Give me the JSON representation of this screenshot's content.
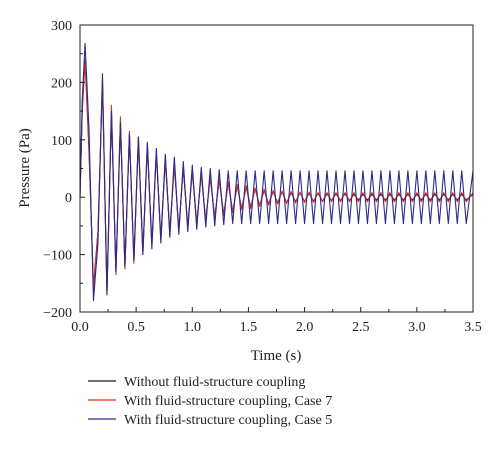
{
  "chart_data": {
    "type": "line",
    "title": "",
    "xlabel": "Time (s)",
    "ylabel": "Pressure (Pa)",
    "xlim": [
      0.0,
      3.5
    ],
    "ylim": [
      -200,
      300
    ],
    "xticks": [
      0.0,
      0.5,
      1.0,
      1.5,
      2.0,
      2.5,
      3.0,
      3.5
    ],
    "xtick_labels": [
      "0.0",
      "0.5",
      "1.0",
      "1.5",
      "2.0",
      "2.5",
      "3.0",
      "3.5"
    ],
    "yticks": [
      -200,
      -100,
      0,
      100,
      200,
      300
    ],
    "ytick_labels": [
      "−200",
      "−100",
      "0",
      "100",
      "200",
      "300"
    ],
    "grid": false,
    "legend_position": "bottom",
    "series": [
      {
        "name": "Without fluid-structure coupling",
        "color": "#1a1a1a",
        "x": [
          0,
          0.02,
          0.045,
          0.08,
          0.12,
          0.16,
          0.2,
          0.24,
          0.28,
          0.32,
          0.36,
          0.4,
          0.44,
          0.48,
          0.52,
          0.56,
          0.6,
          0.64,
          0.68,
          0.72,
          0.76,
          0.8,
          0.84,
          0.88,
          0.92,
          0.96,
          1.0,
          1.04,
          1.08,
          1.12,
          1.16,
          1.2,
          1.24,
          1.28,
          1.32,
          1.36,
          1.4,
          1.44,
          1.48,
          1.52,
          1.56,
          1.6,
          1.64,
          1.68,
          1.72,
          1.76,
          1.8,
          1.84,
          1.88,
          1.92,
          1.96,
          2.0,
          2.04,
          2.08,
          2.12,
          2.16,
          2.2,
          2.24,
          2.28,
          2.32,
          2.36,
          2.4,
          2.44,
          2.48,
          2.52,
          2.56,
          2.6,
          2.64,
          2.68,
          2.72,
          2.76,
          2.8,
          2.84,
          2.88,
          2.92,
          2.96,
          3.0,
          3.04,
          3.08,
          3.12,
          3.16,
          3.2,
          3.24,
          3.28,
          3.32,
          3.36,
          3.4,
          3.44,
          3.5
        ],
        "y": [
          0,
          150,
          240,
          80,
          -155,
          -60,
          200,
          -165,
          145,
          -130,
          130,
          -120,
          110,
          -110,
          100,
          -95,
          90,
          -80,
          75,
          -70,
          65,
          -60,
          55,
          -55,
          50,
          -50,
          45,
          -45,
          40,
          -40,
          35,
          -35,
          30,
          -30,
          25,
          -25,
          20,
          -20,
          18,
          -18,
          15,
          -15,
          12,
          -12,
          10,
          -10,
          10,
          -10,
          8,
          -8,
          8,
          -8,
          7,
          -7,
          7,
          -7,
          6,
          -6,
          6,
          -6,
          6,
          -6,
          5,
          -5,
          5,
          -5,
          5,
          -5,
          5,
          -5,
          5,
          -5,
          5,
          -5,
          5,
          -5,
          5,
          -5,
          5,
          -5,
          5,
          -5,
          5,
          -5,
          5,
          -5,
          5,
          -5,
          5
        ]
      },
      {
        "name": "With fluid-structure coupling, Case 7",
        "color": "#e0301e",
        "x": [
          0,
          0.02,
          0.045,
          0.08,
          0.12,
          0.16,
          0.2,
          0.24,
          0.28,
          0.32,
          0.36,
          0.4,
          0.44,
          0.48,
          0.52,
          0.56,
          0.6,
          0.64,
          0.68,
          0.72,
          0.76,
          0.8,
          0.84,
          0.88,
          0.92,
          0.96,
          1.0,
          1.04,
          1.08,
          1.12,
          1.16,
          1.2,
          1.24,
          1.28,
          1.32,
          1.36,
          1.4,
          1.44,
          1.48,
          1.52,
          1.56,
          1.6,
          1.64,
          1.68,
          1.72,
          1.76,
          1.8,
          1.84,
          1.88,
          1.92,
          1.96,
          2.0,
          2.04,
          2.08,
          2.12,
          2.16,
          2.2,
          2.24,
          2.28,
          2.32,
          2.36,
          2.4,
          2.44,
          2.48,
          2.52,
          2.56,
          2.6,
          2.64,
          2.68,
          2.72,
          2.76,
          2.8,
          2.84,
          2.88,
          2.92,
          2.96,
          3.0,
          3.04,
          3.08,
          3.12,
          3.16,
          3.2,
          3.24,
          3.28,
          3.32,
          3.36,
          3.4,
          3.44,
          3.5
        ],
        "y": [
          0,
          160,
          240,
          90,
          -160,
          -60,
          205,
          -170,
          160,
          -135,
          140,
          -125,
          115,
          -115,
          105,
          -100,
          95,
          -85,
          80,
          -75,
          70,
          -65,
          60,
          -60,
          55,
          -55,
          48,
          -48,
          42,
          -42,
          38,
          -38,
          32,
          -32,
          27,
          -27,
          22,
          -22,
          20,
          -20,
          16,
          -16,
          14,
          -14,
          12,
          -12,
          11,
          -11,
          10,
          -10,
          9,
          -9,
          9,
          -9,
          8,
          -8,
          8,
          -8,
          8,
          -8,
          8,
          -8,
          8,
          -8,
          8,
          -8,
          8,
          -8,
          8,
          -8,
          8,
          -8,
          8,
          -8,
          8,
          -8,
          8,
          -8,
          8,
          -8,
          8,
          -8,
          8,
          -8,
          8,
          -8,
          8,
          -8,
          8
        ]
      },
      {
        "name": "With fluid-structure coupling, Case 5",
        "color": "#2e2a8c",
        "x": [
          0,
          0.02,
          0.045,
          0.08,
          0.12,
          0.16,
          0.2,
          0.24,
          0.28,
          0.32,
          0.36,
          0.4,
          0.44,
          0.48,
          0.52,
          0.56,
          0.6,
          0.64,
          0.68,
          0.72,
          0.76,
          0.8,
          0.84,
          0.88,
          0.92,
          0.96,
          1.0,
          1.04,
          1.08,
          1.12,
          1.16,
          1.2,
          1.24,
          1.28,
          1.32,
          1.36,
          1.4,
          1.44,
          1.48,
          1.52,
          1.56,
          1.6,
          1.64,
          1.68,
          1.72,
          1.76,
          1.8,
          1.84,
          1.88,
          1.92,
          1.96,
          2.0,
          2.04,
          2.08,
          2.12,
          2.16,
          2.2,
          2.24,
          2.28,
          2.32,
          2.36,
          2.4,
          2.44,
          2.48,
          2.52,
          2.56,
          2.6,
          2.64,
          2.68,
          2.72,
          2.76,
          2.8,
          2.84,
          2.88,
          2.92,
          2.96,
          3.0,
          3.04,
          3.08,
          3.12,
          3.16,
          3.2,
          3.24,
          3.28,
          3.32,
          3.36,
          3.4,
          3.44,
          3.5
        ],
        "y": [
          0,
          170,
          268,
          120,
          -180,
          -80,
          215,
          -170,
          150,
          -130,
          130,
          -120,
          110,
          -110,
          105,
          -100,
          95,
          -90,
          85,
          -80,
          75,
          -70,
          70,
          -65,
          62,
          -60,
          56,
          -56,
          52,
          -52,
          50,
          -50,
          48,
          -48,
          46,
          -46,
          46,
          -46,
          46,
          -46,
          46,
          -46,
          46,
          -46,
          46,
          -46,
          46,
          -46,
          46,
          -46,
          46,
          -46,
          46,
          -46,
          46,
          -46,
          46,
          -46,
          46,
          -46,
          46,
          -46,
          46,
          -46,
          46,
          -46,
          46,
          -46,
          46,
          -46,
          46,
          -46,
          46,
          -46,
          46,
          -46,
          46,
          -46,
          46,
          -46,
          46,
          -46,
          46,
          -46,
          46,
          -46,
          46,
          -46,
          46
        ]
      }
    ]
  }
}
